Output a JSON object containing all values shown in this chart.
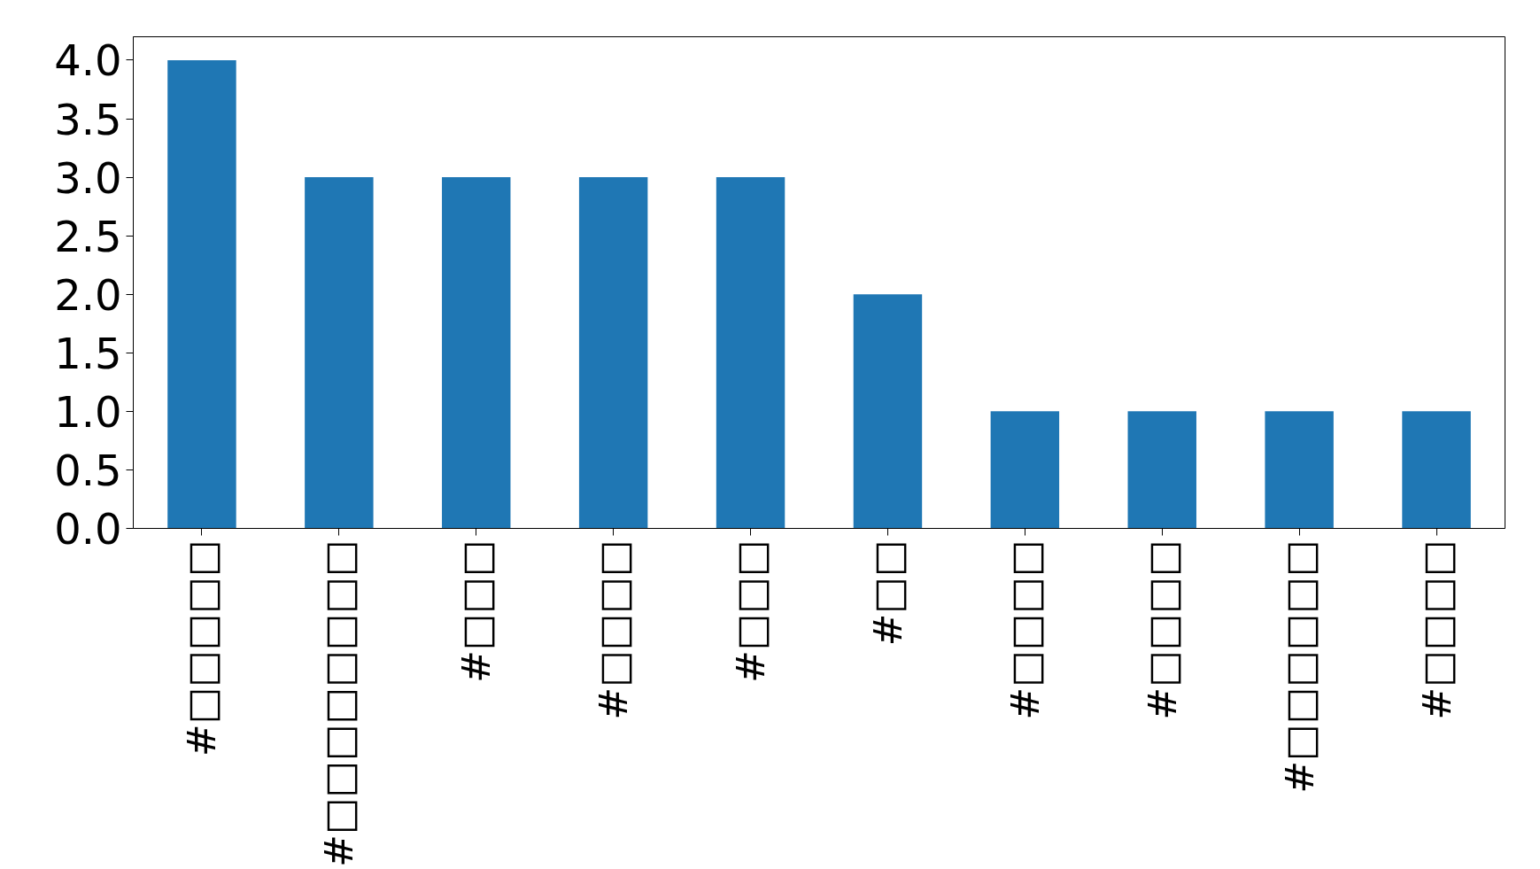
{
  "chart_data": {
    "type": "bar",
    "categories": [
      "#□□□□□",
      "#□□□□□□□□",
      "#□□□",
      "#□□□□",
      "#□□□",
      "#□□",
      "#□□□□",
      "#□□□□",
      "#□□□□□□",
      "#□□□□"
    ],
    "values": [
      4,
      3,
      3,
      3,
      3,
      2,
      1,
      1,
      1,
      1
    ],
    "color": "#1f77b4",
    "ylim": [
      0,
      4.2
    ],
    "yticks": [
      {
        "value": 0,
        "label": "0.0"
      },
      {
        "value": 0.5,
        "label": "0.5"
      },
      {
        "value": 1,
        "label": "1.0"
      },
      {
        "value": 1.5,
        "label": "1.5"
      },
      {
        "value": 2,
        "label": "2.0"
      },
      {
        "value": 2.5,
        "label": "2.5"
      },
      {
        "value": 3,
        "label": "3.0"
      },
      {
        "value": 3.5,
        "label": "3.5"
      },
      {
        "value": 4,
        "label": "4.0"
      }
    ],
    "grid": false
  }
}
